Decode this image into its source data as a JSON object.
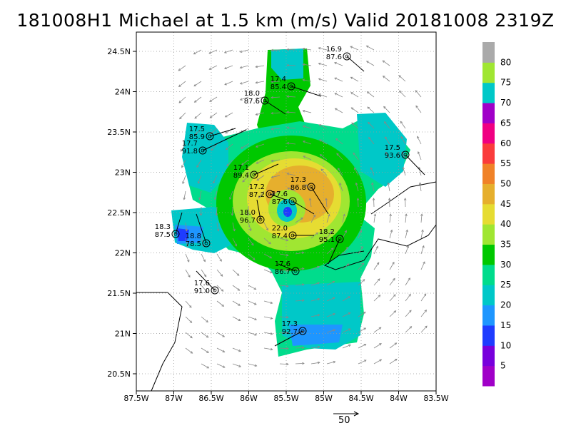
{
  "title": "181008H1 Michael at 1.5 km (m/s) Valid 20181008 2319Z",
  "lon_ticks": [
    "87.5W",
    "87W",
    "86.5W",
    "86W",
    "85.5W",
    "85W",
    "84.5W",
    "84W",
    "83.5W"
  ],
  "lat_ticks": [
    "24.5N",
    "24N",
    "23.5N",
    "23N",
    "22.5N",
    "22N",
    "21.5N",
    "21N",
    "20.5N"
  ],
  "colorbar": {
    "levels": [
      "5",
      "10",
      "15",
      "20",
      "25",
      "30",
      "35",
      "40",
      "45",
      "50",
      "55",
      "60",
      "65",
      "70",
      "75",
      "80"
    ],
    "colors": [
      "#a000c8",
      "#7800dc",
      "#1e3cff",
      "#1e96ff",
      "#00c8c8",
      "#00dc8c",
      "#00c800",
      "#a0e632",
      "#e6dc32",
      "#e6af2d",
      "#f08228",
      "#fa3c3c",
      "#f00082",
      "#a000c8",
      "#00c8c8",
      "#a0e632",
      "#aaaaaa"
    ]
  },
  "stations": [
    {
      "l1": "16.9",
      "l2": "87.6"
    },
    {
      "l1": "17.4",
      "l2": "85.4"
    },
    {
      "l1": "18.0",
      "l2": "87.6"
    },
    {
      "l1": "17.5",
      "l2": "85.9"
    },
    {
      "l1": "17.7",
      "l2": "91.8"
    },
    {
      "l1": "17.5",
      "l2": "93.6"
    },
    {
      "l1": "17.1",
      "l2": "89.4"
    },
    {
      "l1": "17.2",
      "l2": "87.2"
    },
    {
      "l1": "17.3",
      "l2": "86.8"
    },
    {
      "l1": "17.6",
      "l2": "87.6"
    },
    {
      "l1": "18.0",
      "l2": "96.7"
    },
    {
      "l1": "22.0",
      "l2": "87.4"
    },
    {
      "l1": "18.2",
      "l2": "95.1"
    },
    {
      "l1": "18.3",
      "l2": "87.5"
    },
    {
      "l1": "18.8",
      "l2": "78.5"
    },
    {
      "l1": "17.6",
      "l2": "86.7"
    },
    {
      "l1": "17.6",
      "l2": "91.0"
    },
    {
      "l1": "17.3",
      "l2": "92.7"
    }
  ],
  "ref_vector": "50"
}
